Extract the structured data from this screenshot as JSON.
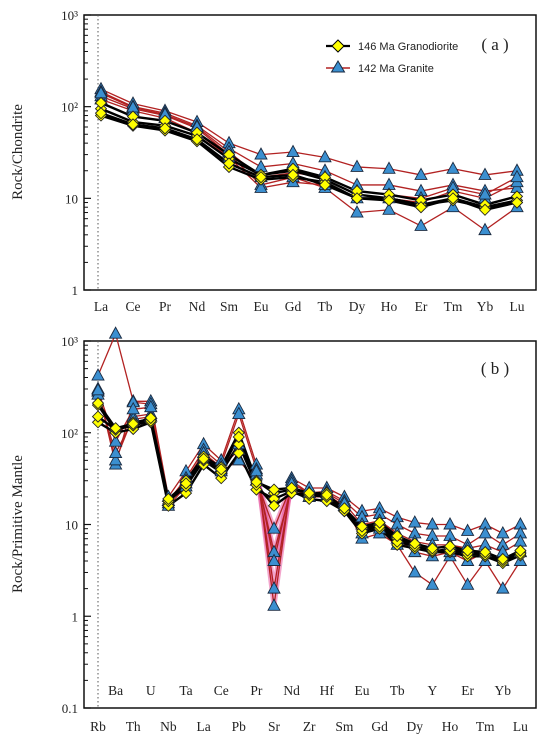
{
  "colors": {
    "granodiorite_line": "#000000",
    "granodiorite_marker": "#ffff00",
    "granite_line": "#b22222",
    "granite_marker": "#3b8fd0",
    "granite_sr_fill": "#e85aa0"
  },
  "chart_data": [
    {
      "type": "line",
      "panel_label": "( a )",
      "ylabel": "Rock/Chondrite",
      "yscale": "log",
      "ylim": [
        1,
        1000
      ],
      "yticks": [
        "1",
        "10",
        "10²",
        "10³"
      ],
      "categories": [
        "La",
        "Ce",
        "Pr",
        "Nd",
        "Sm",
        "Eu",
        "Gd",
        "Tb",
        "Dy",
        "Ho",
        "Er",
        "Tm",
        "Yb",
        "Lu"
      ],
      "legend": [
        "146 Ma Granodiorite",
        "142 Ma Granite"
      ],
      "legend_position": "top-right",
      "series": [
        {
          "name": "146 Ma Granodiorite",
          "values": [
            95,
            68,
            62,
            48,
            27,
            18,
            20,
            16,
            11,
            10,
            8.5,
            10,
            8,
            9.5
          ]
        },
        {
          "name": "146 Ma Granodiorite",
          "values": [
            80,
            62,
            55,
            42,
            22,
            16,
            17,
            15,
            10,
            10,
            8.5,
            9.5,
            8,
            9
          ]
        },
        {
          "name": "146 Ma Granodiorite",
          "values": [
            110,
            78,
            70,
            52,
            30,
            18,
            21,
            17,
            12,
            11,
            9.5,
            11,
            8.5,
            10.5
          ]
        },
        {
          "name": "146 Ma Granodiorite",
          "values": [
            85,
            64,
            58,
            44,
            24,
            17,
            18,
            14,
            10,
            9.5,
            8,
            10,
            7.5,
            9
          ]
        },
        {
          "name": "142 Ma Granite",
          "values": [
            155,
            108,
            90,
            68,
            40,
            30,
            32,
            28,
            22,
            21,
            18,
            21,
            18,
            20
          ]
        },
        {
          "name": "142 Ma Granite",
          "values": [
            145,
            100,
            85,
            62,
            35,
            22,
            24,
            20,
            14,
            14,
            12,
            14,
            12,
            13
          ]
        },
        {
          "name": "142 Ma Granite",
          "values": [
            130,
            95,
            80,
            58,
            30,
            14,
            17,
            13,
            7,
            7.5,
            5,
            8,
            4.5,
            8
          ]
        },
        {
          "name": "142 Ma Granite",
          "values": [
            120,
            90,
            75,
            52,
            28,
            13,
            15,
            14,
            10,
            10,
            9,
            12,
            10,
            15
          ]
        },
        {
          "name": "142 Ma Granite",
          "values": [
            140,
            98,
            82,
            60,
            32,
            17,
            19,
            17,
            12,
            11,
            10,
            13,
            11,
            17
          ]
        }
      ]
    },
    {
      "type": "line",
      "panel_label": "( b )",
      "ylabel": "Rock/Primitive Mantle",
      "yscale": "log",
      "ylim": [
        0.1,
        1000
      ],
      "yticks": [
        "0.1",
        "1",
        "10",
        "10²",
        "10³"
      ],
      "categories": [
        "Rb",
        "Ba",
        "Th",
        "U",
        "Nb",
        "Ta",
        "La",
        "Ce",
        "Pb",
        "Pr",
        "Sr",
        "Nd",
        "Zr",
        "Hf",
        "Sm",
        "Eu",
        "Gd",
        "Tb",
        "Dy",
        "Y",
        "Ho",
        "Er",
        "Tm",
        "Yb",
        "Lu"
      ],
      "series": [
        {
          "name": "146 Ma Granodiorite",
          "values": [
            200,
            105,
            130,
            140,
            17,
            30,
            55,
            42,
            100,
            30,
            22,
            24,
            22,
            22,
            14,
            9,
            10,
            7,
            6,
            5,
            5.5,
            5,
            4.8,
            4,
            5
          ]
        },
        {
          "name": "146 Ma Granodiorite",
          "values": [
            130,
            100,
            110,
            130,
            16,
            22,
            45,
            32,
            60,
            24,
            19,
            23,
            19,
            18,
            14,
            8,
            9,
            6,
            5.5,
            5,
            5,
            4.5,
            4.5,
            3.8,
            4.6
          ]
        },
        {
          "name": "146 Ma Granodiorite",
          "values": [
            150,
            108,
            120,
            135,
            18,
            26,
            50,
            37,
            75,
            27,
            16,
            22,
            21,
            20,
            14,
            8.5,
            9.5,
            6.5,
            5.8,
            5.2,
            5.2,
            4.8,
            4.7,
            4,
            4.8
          ]
        },
        {
          "name": "146 Ma Granodiorite",
          "values": [
            210,
            112,
            125,
            145,
            19,
            28,
            52,
            40,
            90,
            29,
            24,
            25,
            22,
            21,
            15,
            9.5,
            10.5,
            7.5,
            6.2,
            5.5,
            5.8,
            5.2,
            5,
            4.2,
            5.2
          ]
        },
        {
          "name": "142 Ma Granite",
          "values": [
            420,
            1200,
            220,
            220,
            20,
            38,
            75,
            50,
            180,
            45,
            1.3,
            32,
            25,
            25,
            20,
            14,
            15,
            12,
            10.5,
            10,
            10,
            8.5,
            10,
            8,
            10
          ]
        },
        {
          "name": "142 Ma Granite",
          "values": [
            300,
            45,
            215,
            205,
            18,
            32,
            65,
            45,
            160,
            40,
            2,
            30,
            22,
            23,
            18,
            12,
            13,
            10,
            8,
            7.5,
            7.5,
            6,
            8,
            6,
            8
          ]
        },
        {
          "name": "142 Ma Granite",
          "values": [
            280,
            50,
            150,
            160,
            17,
            28,
            55,
            40,
            75,
            35,
            5,
            25,
            20,
            20,
            16,
            7,
            8,
            6,
            3,
            2.2,
            4.5,
            2.2,
            4,
            2,
            4
          ]
        },
        {
          "name": "142 Ma Granite",
          "values": [
            260,
            60,
            140,
            150,
            16,
            26,
            50,
            38,
            50,
            30,
            9,
            27,
            20,
            21,
            16,
            8,
            9,
            7,
            5,
            4.5,
            5,
            4,
            5,
            4,
            5
          ]
        },
        {
          "name": "142 Ma Granite",
          "values": [
            290,
            80,
            180,
            190,
            18,
            30,
            60,
            42,
            65,
            38,
            4,
            28,
            22,
            22,
            17,
            10,
            11,
            8,
            6.5,
            6,
            6,
            5.5,
            6,
            5,
            6.5
          ]
        }
      ]
    }
  ]
}
